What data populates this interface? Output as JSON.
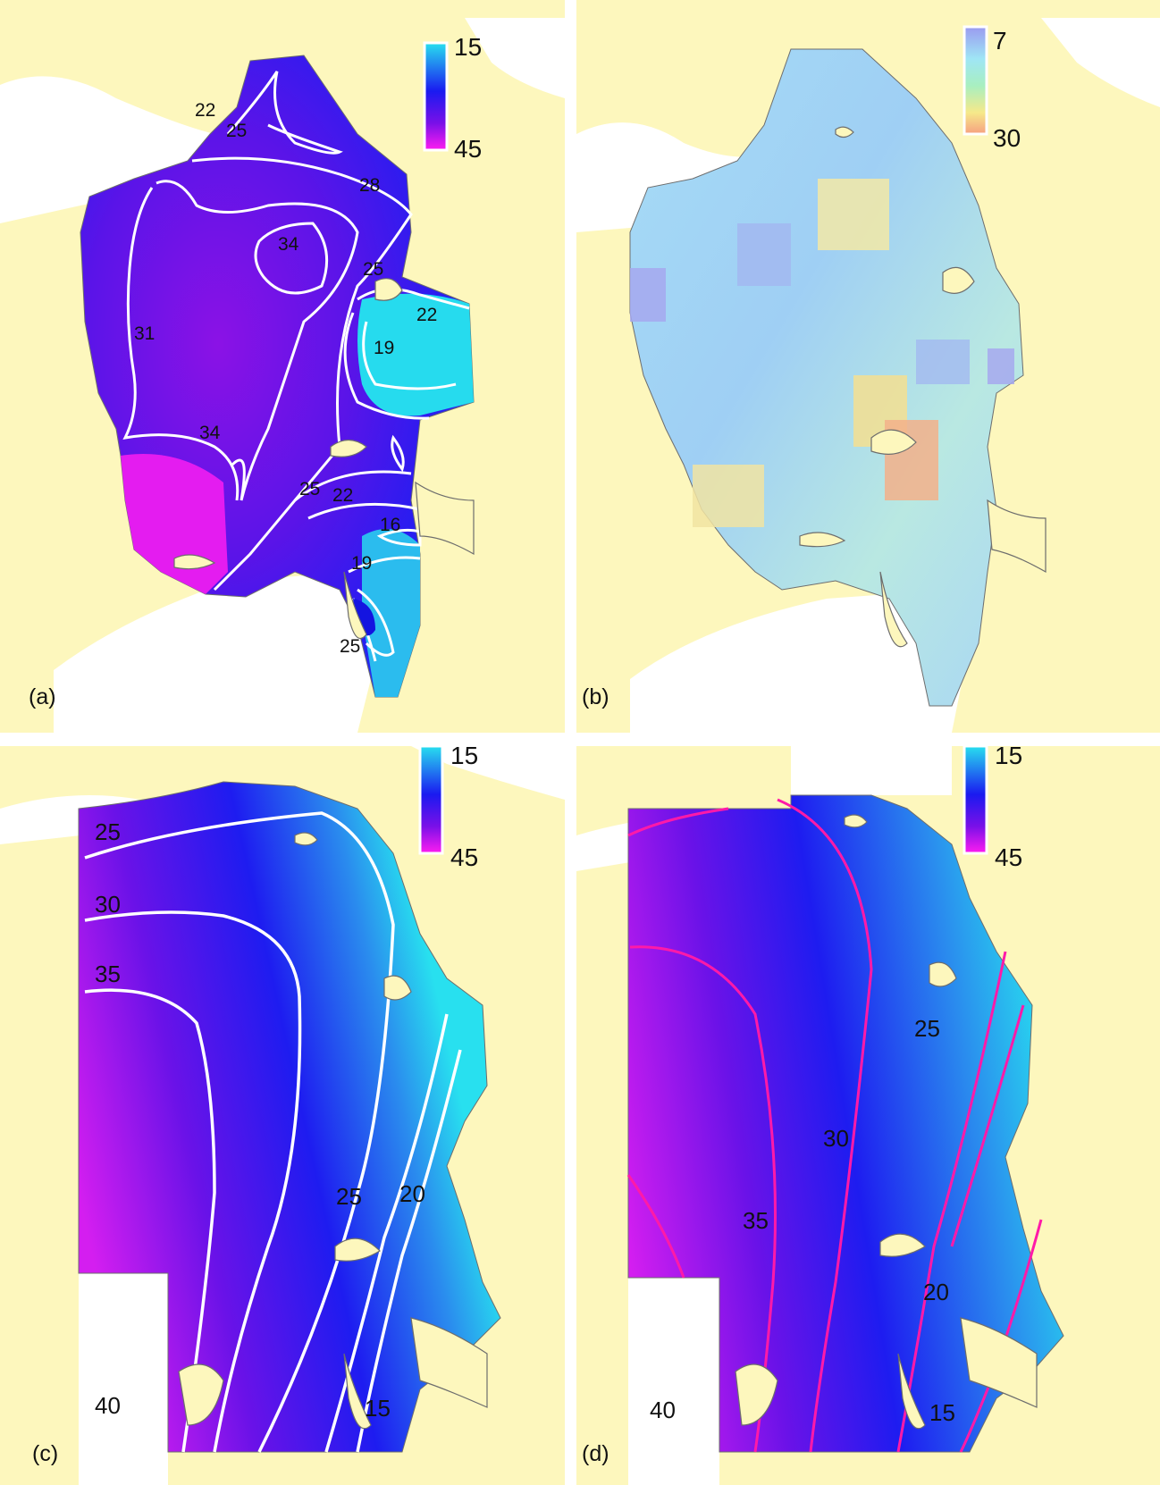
{
  "panels": [
    {
      "tag": "(a)",
      "legend": {
        "max": "15",
        "min": "45",
        "colors": [
          "#28e0ef",
          "#1a1af0",
          "#7a10e8",
          "#ff1cf0"
        ]
      },
      "contours": [
        "22",
        "25",
        "28",
        "34",
        "25",
        "22",
        "31",
        "19",
        "34",
        "25",
        "22",
        "16",
        "19",
        "25"
      ]
    },
    {
      "tag": "(b)",
      "legend": {
        "max": "7",
        "min": "30",
        "colors": [
          "#9a9af0",
          "#9fe6f5",
          "#a8efc0",
          "#f6e98a",
          "#f6a080"
        ]
      }
    },
    {
      "tag": "(c)",
      "legend": {
        "max": "15",
        "min": "45",
        "colors": [
          "#28e0ef",
          "#1a1af0",
          "#7a10e8",
          "#ff1cf0"
        ]
      },
      "contours": [
        "25",
        "30",
        "35",
        "25",
        "20",
        "40",
        "15"
      ]
    },
    {
      "tag": "(d)",
      "legend": {
        "max": "15",
        "min": "45",
        "colors": [
          "#28e0ef",
          "#1a1af0",
          "#7a10e8",
          "#ff1cf0"
        ]
      },
      "contours": [
        "25",
        "30",
        "35",
        "20",
        "40",
        "15"
      ]
    }
  ],
  "colors": {
    "land": "#fdf7bd",
    "coast": "#6d6d6d",
    "ocean": "#ffffff",
    "contour_a": "#ffffff",
    "contour_c": "#ffffff",
    "contour_d": "#ff1aa8"
  }
}
